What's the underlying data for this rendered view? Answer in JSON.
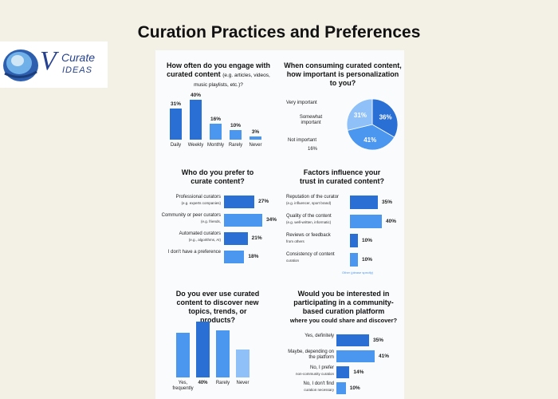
{
  "page": {
    "title": "Curation Practices and Preferences"
  },
  "logo": {
    "letter": "V",
    "word1": "Curate",
    "word2": "IDEAS"
  },
  "colors": {
    "dark": "#2a6fd4",
    "mid": "#4b96ef",
    "light": "#8fc0f8",
    "background": "#f3f0e6"
  },
  "chart_data": [
    {
      "type": "bar",
      "title": "How often do you engage with curated content",
      "title_note": "(e.g. articles, videos, music playlists, etc.)?",
      "categories": [
        "Daily",
        "Weekly",
        "Monthly",
        "Rarely",
        "Never"
      ],
      "values": [
        31,
        40,
        16,
        10,
        3
      ],
      "labels": [
        "31%",
        "40%",
        "16%",
        "10%",
        "3%"
      ]
    },
    {
      "type": "pie",
      "title": "When consuming curated content, how important is personalization to you?",
      "slices": [
        {
          "label": "Very important",
          "value": 36,
          "text": "36%"
        },
        {
          "label": "Somewhat important",
          "value": 41,
          "text": "41%"
        },
        {
          "label": "Not important",
          "value": 31,
          "text": "31%"
        }
      ],
      "extra_label": "16%"
    },
    {
      "type": "bar",
      "orientation": "horizontal",
      "title": "Who do you prefer to curate content?",
      "categories": [
        {
          "main": "Professional curators",
          "sub": "(e.g. experts companies)"
        },
        {
          "main": "Community or peer curators",
          "sub": "(e.g. friends,"
        },
        {
          "main": "Automated curators",
          "sub": "(e.g., algorithms, AI)"
        },
        {
          "main": "I don't have a preference",
          "sub": ""
        }
      ],
      "values": [
        27,
        34,
        21,
        18
      ],
      "labels": [
        "27%",
        "34%",
        "21%",
        "18%"
      ]
    },
    {
      "type": "bar",
      "orientation": "horizontal",
      "title": "Factors influence your trust in curated content?",
      "categories": [
        {
          "main": "Reputation of the curator",
          "sub": "(e.g. influencer, sport brand)"
        },
        {
          "main": "Quality of the content",
          "sub": "(e.g. well-written, informatic)"
        },
        {
          "main": "Reviews or feedback",
          "sub": "from others"
        },
        {
          "main": "Consistency of content",
          "sub": "curation"
        }
      ],
      "values": [
        35,
        40,
        10,
        10
      ],
      "labels": [
        "35%",
        "40%",
        "10%",
        "10%"
      ],
      "footnote": "Other (please specify)"
    },
    {
      "type": "bar",
      "title": "Do you ever use curated content to discover new topics, trends, or products?",
      "categories": [
        "Yes, frequently",
        "40%",
        "Rarely",
        "Never"
      ],
      "values": [
        32,
        40,
        34,
        20
      ]
    },
    {
      "type": "bar",
      "orientation": "horizontal",
      "title": "Would you be interested in participating in a community-based curation platform",
      "subtitle": "where you could share and discover?",
      "categories": [
        {
          "main": "Yes, definitely",
          "sub": ""
        },
        {
          "main": "Maybe, depending on the platform",
          "sub": ""
        },
        {
          "main": "No, I prefer",
          "sub": "non-community curation"
        },
        {
          "main": "No, I don't find",
          "sub": "curation necessary"
        }
      ],
      "values": [
        35,
        41,
        14,
        10
      ],
      "labels": [
        "35%",
        "41%",
        "14%",
        "10%"
      ]
    }
  ]
}
